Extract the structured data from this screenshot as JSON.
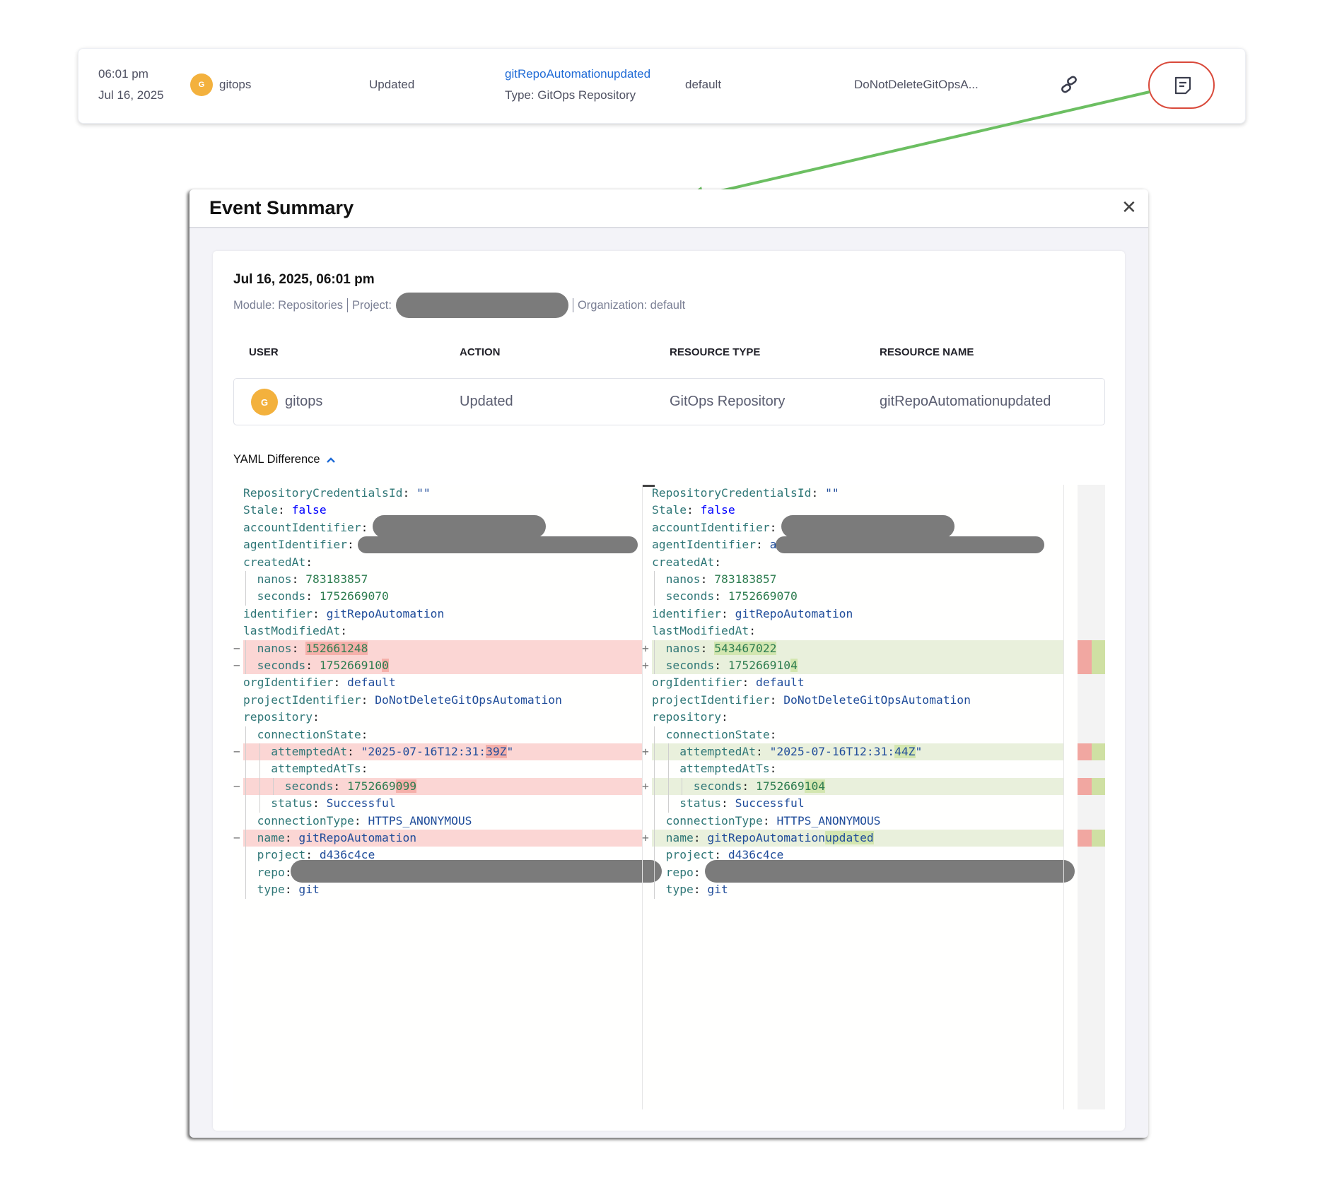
{
  "event_row": {
    "time": "06:01 pm",
    "date": "Jul 16, 2025",
    "avatar_initial": "G",
    "user": "gitops",
    "action": "Updated",
    "resource_name": "gitRepoAutomationupdated",
    "resource_type": "Type: GitOps Repository",
    "organization": "default",
    "project": "DoNotDeleteGitOpsA...",
    "link_icon": "link-icon",
    "summary_icon": "event-summary-icon"
  },
  "colors": {
    "accent": "#1f6bd6",
    "avatar": "#f3b13d",
    "highlight_circle": "#d9493a",
    "arrow": "#6cbf62",
    "removed_line": "#fbd6d4",
    "added_line": "#e9f0dc"
  },
  "modal": {
    "title": "Event Summary",
    "close_icon": "close-icon",
    "datetime": "Jul 16, 2025, 06:01 pm",
    "module": "Module: Repositories",
    "project_label": "Project:",
    "organization": "Organization: default",
    "table": {
      "headers": [
        "USER",
        "ACTION",
        "RESOURCE TYPE",
        "RESOURCE NAME"
      ],
      "row": {
        "avatar_initial": "G",
        "user": "gitops",
        "action": "Updated",
        "resource_type": "GitOps Repository",
        "resource_name": "gitRepoAutomationupdated"
      }
    },
    "yaml_label": "YAML Difference",
    "yaml_toggle_icon": "chevron-up-icon",
    "diff": [
      {
        "indent": 0,
        "key": "RepositoryCredentialsId",
        "type": "str",
        "left": [
          "\"\""
        ],
        "right": [
          "\"\""
        ]
      },
      {
        "indent": 0,
        "key": "Stale",
        "type": "bool",
        "left": [
          "false"
        ],
        "right": [
          "false"
        ]
      },
      {
        "indent": 0,
        "key": "accountIdentifier",
        "type": "str",
        "redacted": true,
        "left": [
          ""
        ],
        "right": [
          ""
        ]
      },
      {
        "indent": 0,
        "key": "agentIdentifier",
        "type": "str",
        "redacted": true,
        "left": [
          ""
        ],
        "right": [
          "a"
        ]
      },
      {
        "indent": 0,
        "key": "createdAt",
        "type": "str",
        "left": [],
        "right": []
      },
      {
        "indent": 1,
        "key": "nanos",
        "type": "num",
        "left": [
          "783183857"
        ],
        "right": [
          "783183857"
        ]
      },
      {
        "indent": 1,
        "key": "seconds",
        "type": "num",
        "left": [
          "1752669070"
        ],
        "right": [
          "1752669070"
        ]
      },
      {
        "indent": 0,
        "key": "identifier",
        "type": "str",
        "left": [
          "gitRepoAutomation"
        ],
        "right": [
          "gitRepoAutomation"
        ]
      },
      {
        "indent": 0,
        "key": "lastModifiedAt",
        "type": "str",
        "left": [],
        "right": []
      },
      {
        "indent": 1,
        "key": "nanos",
        "type": "num",
        "changed": true,
        "left": [
          "",
          "152661248"
        ],
        "right": [
          "",
          "543467022"
        ]
      },
      {
        "indent": 1,
        "key": "seconds",
        "type": "num",
        "changed": true,
        "left": [
          "175266910",
          "0"
        ],
        "right": [
          "175266910",
          "4"
        ]
      },
      {
        "indent": 0,
        "key": "orgIdentifier",
        "type": "str",
        "left": [
          "default"
        ],
        "right": [
          "default"
        ]
      },
      {
        "indent": 0,
        "key": "projectIdentifier",
        "type": "str",
        "left": [
          "DoNotDeleteGitOpsAutomation"
        ],
        "right": [
          "DoNotDeleteGitOpsAutomation"
        ]
      },
      {
        "indent": 0,
        "key": "repository",
        "type": "str",
        "left": [],
        "right": []
      },
      {
        "indent": 1,
        "key": "connectionState",
        "type": "str",
        "left": [],
        "right": []
      },
      {
        "indent": 2,
        "key": "attemptedAt",
        "type": "str",
        "changed": true,
        "left": [
          "\"2025-07-16T12:31:",
          "39Z",
          "\""
        ],
        "right": [
          "\"2025-07-16T12:31:",
          "44Z",
          "\""
        ]
      },
      {
        "indent": 2,
        "key": "attemptedAtTs",
        "type": "str",
        "left": [],
        "right": []
      },
      {
        "indent": 3,
        "key": "seconds",
        "type": "num",
        "changed": true,
        "left": [
          "1752669",
          "099"
        ],
        "right": [
          "1752669",
          "104"
        ]
      },
      {
        "indent": 2,
        "key": "status",
        "type": "str",
        "left": [
          "Successful"
        ],
        "right": [
          "Successful"
        ]
      },
      {
        "indent": 1,
        "key": "connectionType",
        "type": "str",
        "left": [
          "HTTPS_ANONYMOUS"
        ],
        "right": [
          "HTTPS_ANONYMOUS"
        ]
      },
      {
        "indent": 1,
        "key": "name",
        "type": "str",
        "changed": true,
        "left": [
          "gitRepoAutomation"
        ],
        "right": [
          "gitRepoAutomation",
          "updated"
        ]
      },
      {
        "indent": 1,
        "key": "project",
        "type": "str",
        "left": [
          "d436c4ce"
        ],
        "right": [
          "d436c4ce"
        ]
      },
      {
        "indent": 1,
        "key": "repo",
        "type": "str",
        "redacted": true,
        "left": [
          ""
        ],
        "right": [
          ""
        ]
      },
      {
        "indent": 1,
        "key": "type",
        "type": "str",
        "left": [
          "git"
        ],
        "right": [
          "git"
        ]
      }
    ]
  }
}
